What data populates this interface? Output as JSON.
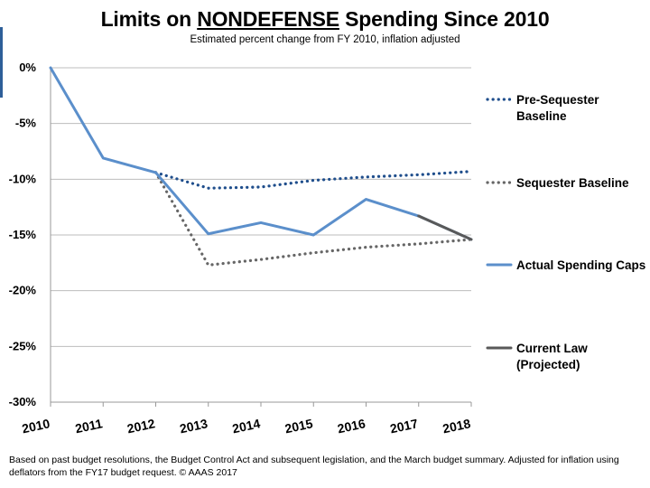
{
  "chart_data": {
    "type": "line",
    "title_prefix": "Limits on ",
    "title_emph": "NONDEFENSE",
    "title_suffix": " Spending Since 2010",
    "subtitle": "Estimated percent change from FY 2010, inflation adjusted",
    "x": [
      "2010",
      "2011",
      "2012",
      "2013",
      "2014",
      "2015",
      "2016",
      "2017",
      "2018"
    ],
    "ylim": [
      -30,
      0
    ],
    "yticks": [
      0,
      -5,
      -10,
      -15,
      -20,
      -25,
      -30
    ],
    "ytick_labels": [
      "0%",
      "-5%",
      "-10%",
      "-15%",
      "-20%",
      "-25%",
      "-30%"
    ],
    "grid": true,
    "series": [
      {
        "name": "Pre-Sequester Baseline",
        "legend_lines": [
          "Pre-Sequester",
          "Baseline"
        ],
        "style": "dotted",
        "color": "#1f4e8c",
        "x": [
          "2012",
          "2013",
          "2014",
          "2015",
          "2016",
          "2017",
          "2018"
        ],
        "values": [
          -9.4,
          -10.8,
          -10.7,
          -10.1,
          -9.8,
          -9.6,
          -9.3
        ]
      },
      {
        "name": "Sequester Baseline",
        "legend_lines": [
          "Sequester Baseline"
        ],
        "style": "dotted",
        "color": "#666666",
        "x": [
          "2012",
          "2013",
          "2014",
          "2015",
          "2016",
          "2017",
          "2018"
        ],
        "values": [
          -9.4,
          -17.7,
          -17.2,
          -16.6,
          -16.1,
          -15.8,
          -15.4
        ]
      },
      {
        "name": "Actual Spending Caps",
        "legend_lines": [
          "Actual Spending Caps"
        ],
        "style": "solid",
        "color": "#5b8fcb",
        "x": [
          "2010",
          "2011",
          "2012",
          "2013",
          "2014",
          "2015",
          "2016",
          "2017",
          "2018"
        ],
        "values": [
          0,
          -8.1,
          -9.4,
          -14.9,
          -13.9,
          -15.0,
          -11.8,
          -13.3,
          -15.4
        ]
      },
      {
        "name": "Current Law (Projected)",
        "legend_lines": [
          "Current Law",
          "(Projected)"
        ],
        "style": "solid",
        "color": "#595959",
        "x": [
          "2017",
          "2018"
        ],
        "values": [
          -13.3,
          -15.4
        ]
      }
    ]
  },
  "footnote": "Based on past budget resolutions, the Budget Control Act and subsequent legislation, and the March budget summary.  Adjusted for inflation using deflators from the FY17 budget request. © AAAS 2017"
}
